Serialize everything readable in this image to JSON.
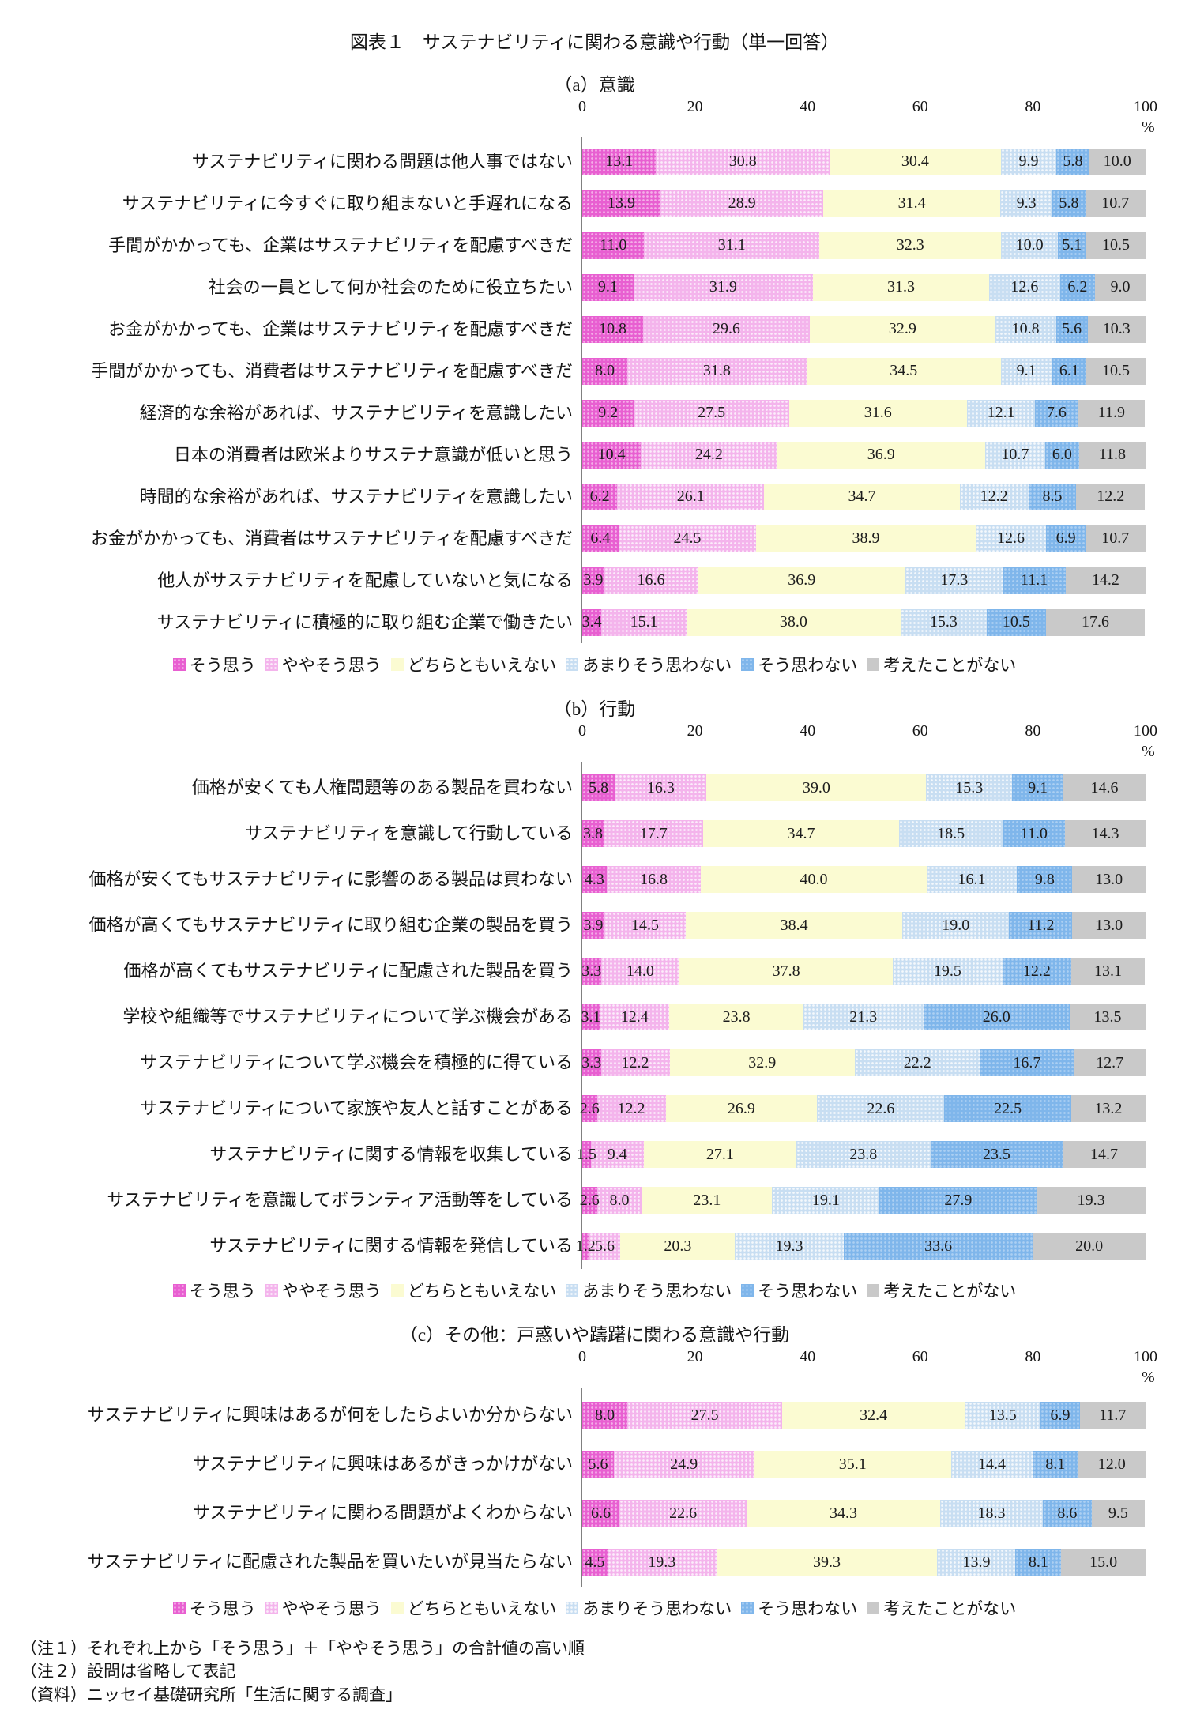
{
  "page": {
    "title": "図表１　サステナビリティに関わる意識や行動（単一回答）",
    "notes": [
      "（注１）それぞれ上から「そう思う」＋「ややそう思う」の合計値の高い順",
      "（注２）設問は省略して表記",
      "（資料）ニッセイ基礎研究所「生活に関する調査」"
    ]
  },
  "legend": {
    "items": [
      "そう思う",
      "ややそう思う",
      "どちらともいえない",
      "あまりそう思わない",
      "そう思わない",
      "考えたことがない"
    ]
  },
  "series_colors": [
    {
      "name": "そう思う",
      "color": "#e85fd1",
      "pattern": "dots"
    },
    {
      "name": "ややそう思う",
      "color": "#f4b4ec",
      "pattern": "dots"
    },
    {
      "name": "どちらともいえない",
      "color": "#fbfbd2",
      "pattern": "solid"
    },
    {
      "name": "あまりそう思わない",
      "color": "#c8def2",
      "pattern": "dots"
    },
    {
      "name": "そう思わない",
      "color": "#7fb6eb",
      "pattern": "dots"
    },
    {
      "name": "考えたことがない",
      "color": "#c9c9c9",
      "pattern": "solid"
    }
  ],
  "axis": {
    "ticks": [
      0,
      20,
      40,
      60,
      80,
      100
    ],
    "max": 100,
    "unit": "%"
  },
  "chart_data": [
    {
      "type": "bar",
      "stacked": true,
      "orientation": "horizontal",
      "title": "（a）意識",
      "xlim": [
        0,
        100
      ],
      "categories": [
        "サステナビリティに関わる問題は他人事ではない",
        "サステナビリティに今すぐに取り組まないと手遅れになる",
        "手間がかかっても、企業はサステナビリティを配慮すべきだ",
        "社会の一員として何か社会のために役立ちたい",
        "お金がかかっても、企業はサステナビリティを配慮すべきだ",
        "手間がかかっても、消費者はサステナビリティを配慮すべきだ",
        "経済的な余裕があれば、サステナビリティを意識したい",
        "日本の消費者は欧米よりサステナ意識が低いと思う",
        "時間的な余裕があれば、サステナビリティを意識したい",
        "お金がかかっても、消費者はサステナビリティを配慮すべきだ",
        "他人がサステナビリティを配慮していないと気になる",
        "サステナビリティに積極的に取り組む企業で働きたい"
      ],
      "series": [
        {
          "name": "そう思う",
          "values": [
            13.1,
            13.9,
            11.0,
            9.1,
            10.8,
            8.0,
            9.2,
            10.4,
            6.2,
            6.4,
            3.9,
            3.4
          ]
        },
        {
          "name": "ややそう思う",
          "values": [
            30.8,
            28.9,
            31.1,
            31.9,
            29.6,
            31.8,
            27.5,
            24.2,
            26.1,
            24.5,
            16.6,
            15.1
          ]
        },
        {
          "name": "どちらともいえない",
          "values": [
            30.4,
            31.4,
            32.3,
            31.3,
            32.9,
            34.5,
            31.6,
            36.9,
            34.7,
            38.9,
            36.9,
            38.0
          ]
        },
        {
          "name": "あまりそう思わない",
          "values": [
            9.9,
            9.3,
            10.0,
            12.6,
            10.8,
            9.1,
            12.1,
            10.7,
            12.2,
            12.6,
            17.3,
            15.3
          ]
        },
        {
          "name": "そう思わない",
          "values": [
            5.8,
            5.8,
            5.1,
            6.2,
            5.6,
            6.1,
            7.6,
            6.0,
            8.5,
            6.9,
            11.1,
            10.5
          ]
        },
        {
          "name": "考えたことがない",
          "values": [
            10.0,
            10.7,
            10.5,
            9.0,
            10.3,
            10.5,
            11.9,
            11.8,
            12.2,
            10.7,
            14.2,
            17.6
          ]
        }
      ]
    },
    {
      "type": "bar",
      "stacked": true,
      "orientation": "horizontal",
      "title": "（b）行動",
      "xlim": [
        0,
        100
      ],
      "categories": [
        "価格が安くても人権問題等のある製品を買わない",
        "サステナビリティを意識して行動している",
        "価格が安くてもサステナビリティに影響のある製品は買わない",
        "価格が高くてもサステナビリティに取り組む企業の製品を買う",
        "価格が高くてもサステナビリティに配慮された製品を買う",
        "学校や組織等でサステナビリティについて学ぶ機会がある",
        "サステナビリティについて学ぶ機会を積極的に得ている",
        "サステナビリティについて家族や友人と話すことがある",
        "サステナビリティに関する情報を収集している",
        "サステナビリティを意識してボランティア活動等をしている",
        "サステナビリティに関する情報を発信している"
      ],
      "series": [
        {
          "name": "そう思う",
          "values": [
            5.8,
            3.8,
            4.3,
            3.9,
            3.3,
            3.1,
            3.3,
            2.6,
            1.5,
            2.6,
            1.2
          ]
        },
        {
          "name": "ややそう思う",
          "values": [
            16.3,
            17.7,
            16.8,
            14.5,
            14.0,
            12.4,
            12.2,
            12.2,
            9.4,
            8.0,
            5.6
          ]
        },
        {
          "name": "どちらともいえない",
          "values": [
            39.0,
            34.7,
            40.0,
            38.4,
            37.8,
            23.8,
            32.9,
            26.9,
            27.1,
            23.1,
            20.3
          ]
        },
        {
          "name": "あまりそう思わない",
          "values": [
            15.3,
            18.5,
            16.1,
            19.0,
            19.5,
            21.3,
            22.2,
            22.6,
            23.8,
            19.1,
            19.3
          ]
        },
        {
          "name": "そう思わない",
          "values": [
            9.1,
            11.0,
            9.8,
            11.2,
            12.2,
            26.0,
            16.7,
            22.5,
            23.5,
            27.9,
            33.6
          ]
        },
        {
          "name": "考えたことがない",
          "values": [
            14.6,
            14.3,
            13.0,
            13.0,
            13.1,
            13.5,
            12.7,
            13.2,
            14.7,
            19.3,
            20.0
          ]
        }
      ]
    },
    {
      "type": "bar",
      "stacked": true,
      "orientation": "horizontal",
      "title": "（c）その他：戸惑いや躊躇に関わる意識や行動",
      "xlim": [
        0,
        100
      ],
      "categories": [
        "サステナビリティに興味はあるが何をしたらよいか分からない",
        "サステナビリティに興味はあるがきっかけがない",
        "サステナビリティに関わる問題がよくわからない",
        "サステナビリティに配慮された製品を買いたいが見当たらない"
      ],
      "series": [
        {
          "name": "そう思う",
          "values": [
            8.0,
            5.6,
            6.6,
            4.5
          ]
        },
        {
          "name": "ややそう思う",
          "values": [
            27.5,
            24.9,
            22.6,
            19.3
          ]
        },
        {
          "name": "どちらともいえない",
          "values": [
            32.4,
            35.1,
            34.3,
            39.3
          ]
        },
        {
          "name": "あまりそう思わない",
          "values": [
            13.5,
            14.4,
            18.3,
            13.9
          ]
        },
        {
          "name": "そう思わない",
          "values": [
            6.9,
            8.1,
            8.6,
            8.1
          ]
        },
        {
          "name": "考えたことがない",
          "values": [
            11.7,
            12.0,
            9.5,
            15.0
          ]
        }
      ]
    }
  ]
}
